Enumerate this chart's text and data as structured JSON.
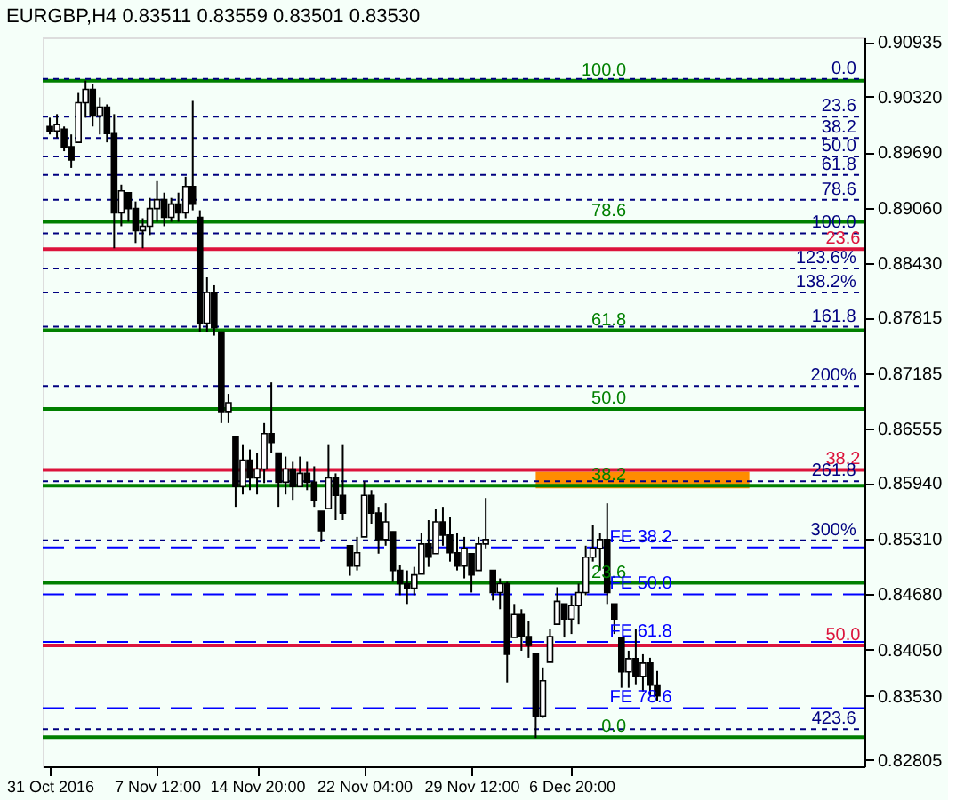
{
  "chart_data": {
    "type": "candlestick",
    "title": "EURGBP,H4 0.83511 0.83559 0.83501 0.83530",
    "color": "#000000",
    "categories": [
      "31 Oct 2016",
      null,
      null,
      null,
      null,
      null,
      null,
      null,
      null,
      null,
      null,
      null,
      null,
      null,
      null,
      "7 Nov 12:00",
      null,
      null,
      null,
      null,
      null,
      null,
      null,
      null,
      null,
      null,
      null,
      null,
      null,
      "14 Nov 20:00",
      null,
      null,
      null,
      null,
      null,
      null,
      null,
      null,
      null,
      null,
      null,
      null,
      null,
      null,
      "22 Nov 04:00",
      null,
      null,
      null,
      null,
      null,
      null,
      null,
      null,
      null,
      null,
      null,
      null,
      null,
      null,
      "29 Nov 12:00",
      null,
      null,
      null,
      null,
      null,
      null,
      null,
      null,
      null,
      null,
      null,
      null,
      null,
      "6 Dec 20:00",
      null,
      null,
      null,
      null,
      null,
      null,
      null,
      null,
      null,
      null,
      null,
      null,
      null,
      null,
      null,
      null,
      null,
      null,
      null,
      null,
      null,
      null,
      null,
      null,
      null,
      null,
      null,
      null,
      null,
      null,
      null,
      null,
      null,
      null,
      null,
      null,
      null,
      null,
      null,
      null
    ],
    "ohlc": [
      [
        0.8998,
        0.9008,
        0.8989,
        0.8993
      ],
      [
        0.8993,
        0.9012,
        0.8985,
        0.9
      ],
      [
        0.8995,
        0.8998,
        0.897,
        0.8975
      ],
      [
        0.8975,
        0.8989,
        0.8951,
        0.896
      ],
      [
        0.898,
        0.9036,
        0.898,
        0.9025
      ],
      [
        0.9025,
        0.905,
        0.9008,
        0.904
      ],
      [
        0.904,
        0.9046,
        0.8998,
        0.901
      ],
      [
        0.901,
        0.9031,
        0.8989,
        0.902
      ],
      [
        0.902,
        0.9023,
        0.898,
        0.899
      ],
      [
        0.899,
        0.9012,
        0.886,
        0.89
      ],
      [
        0.89,
        0.8932,
        0.8885,
        0.8925
      ],
      [
        0.8923,
        0.8923,
        0.889,
        0.8905
      ],
      [
        0.8905,
        0.8913,
        0.8866,
        0.888
      ],
      [
        0.888,
        0.8894,
        0.886,
        0.8885
      ],
      [
        0.8885,
        0.8917,
        0.8875,
        0.8905
      ],
      [
        0.8905,
        0.8936,
        0.889,
        0.8915
      ],
      [
        0.8915,
        0.8923,
        0.8885,
        0.8895
      ],
      [
        0.8895,
        0.8917,
        0.889,
        0.891
      ],
      [
        0.891,
        0.8923,
        0.889,
        0.89
      ],
      [
        0.89,
        0.8941,
        0.8894,
        0.893
      ],
      [
        0.893,
        0.9027,
        0.8903,
        0.891
      ],
      [
        0.8895,
        0.8903,
        0.8765,
        0.8775
      ],
      [
        0.8775,
        0.8827,
        0.8765,
        0.881
      ],
      [
        0.881,
        0.8818,
        0.8761,
        0.877
      ],
      [
        0.8765,
        0.8765,
        0.8662,
        0.8675
      ],
      [
        0.8675,
        0.8695,
        0.8662,
        0.8685
      ],
      [
        0.8647,
        0.8647,
        0.8567,
        0.859
      ],
      [
        0.859,
        0.8638,
        0.8581,
        0.862
      ],
      [
        0.862,
        0.8632,
        0.8586,
        0.86
      ],
      [
        0.86,
        0.8628,
        0.8581,
        0.861
      ],
      [
        0.861,
        0.8662,
        0.8594,
        0.865
      ],
      [
        0.865,
        0.8708,
        0.8628,
        0.864
      ],
      [
        0.8628,
        0.8628,
        0.8567,
        0.8595
      ],
      [
        0.8595,
        0.8624,
        0.8581,
        0.861
      ],
      [
        0.861,
        0.8618,
        0.8575,
        0.859
      ],
      [
        0.859,
        0.8624,
        0.859,
        0.8605
      ],
      [
        0.8605,
        0.8618,
        0.8586,
        0.8595
      ],
      [
        0.8595,
        0.8613,
        0.8567,
        0.8575
      ],
      [
        0.8562,
        0.8562,
        0.8527,
        0.854
      ],
      [
        0.8565,
        0.8638,
        0.8565,
        0.86
      ],
      [
        0.86,
        0.8605,
        0.8552,
        0.858
      ],
      [
        0.858,
        0.8638,
        0.8552,
        0.856
      ],
      [
        0.8523,
        0.8523,
        0.8489,
        0.85
      ],
      [
        0.85,
        0.8533,
        0.8495,
        0.8515
      ],
      [
        0.8533,
        0.8596,
        0.8533,
        0.858
      ],
      [
        0.858,
        0.8586,
        0.8548,
        0.856
      ],
      [
        0.856,
        0.8567,
        0.8514,
        0.853
      ],
      [
        0.853,
        0.8571,
        0.8523,
        0.855
      ],
      [
        0.8539,
        0.8539,
        0.8482,
        0.8495
      ],
      [
        0.8495,
        0.8501,
        0.8467,
        0.848
      ],
      [
        0.848,
        0.8495,
        0.8457,
        0.8475
      ],
      [
        0.8475,
        0.8499,
        0.8467,
        0.849
      ],
      [
        0.8491,
        0.8537,
        0.8491,
        0.8525
      ],
      [
        0.8525,
        0.8552,
        0.8499,
        0.851
      ],
      [
        0.8514,
        0.8565,
        0.8514,
        0.855
      ],
      [
        0.855,
        0.8567,
        0.8523,
        0.8535
      ],
      [
        0.8535,
        0.8556,
        0.8505,
        0.8515
      ],
      [
        0.8515,
        0.8537,
        0.8495,
        0.85
      ],
      [
        0.85,
        0.8533,
        0.8486,
        0.852
      ],
      [
        0.8514,
        0.8514,
        0.847,
        0.849
      ],
      [
        0.8495,
        0.8533,
        0.8495,
        0.8525
      ],
      [
        0.8525,
        0.8577,
        0.852,
        0.853
      ],
      [
        0.8495,
        0.8495,
        0.8461,
        0.847
      ],
      [
        0.847,
        0.8486,
        0.8451,
        0.848
      ],
      [
        0.848,
        0.8482,
        0.8368,
        0.84
      ],
      [
        0.8419,
        0.8457,
        0.8419,
        0.8445
      ],
      [
        0.8445,
        0.8451,
        0.8404,
        0.842
      ],
      [
        0.842,
        0.8438,
        0.8396,
        0.841
      ],
      [
        0.84,
        0.84,
        0.8305,
        0.833
      ],
      [
        0.833,
        0.8385,
        0.8328,
        0.837
      ],
      [
        0.8391,
        0.8429,
        0.8391,
        0.842
      ],
      [
        0.8434,
        0.8476,
        0.8434,
        0.846
      ],
      [
        0.8457,
        0.8457,
        0.8419,
        0.844
      ],
      [
        0.844,
        0.8467,
        0.8423,
        0.8455
      ],
      [
        0.8455,
        0.848,
        0.8434,
        0.847
      ],
      [
        0.847,
        0.8523,
        0.8467,
        0.851
      ],
      [
        0.851,
        0.8546,
        0.8505,
        0.852
      ],
      [
        0.852,
        0.8537,
        0.8495,
        0.853
      ],
      [
        0.853,
        0.8571,
        0.8457,
        0.847
      ],
      [
        0.8457,
        0.8457,
        0.8423,
        0.844
      ],
      [
        0.8419,
        0.8419,
        0.8362,
        0.838
      ],
      [
        0.838,
        0.8404,
        0.8362,
        0.8395
      ],
      [
        0.8395,
        0.8429,
        0.8366,
        0.8375
      ],
      [
        0.8375,
        0.84,
        0.8358,
        0.839
      ],
      [
        0.839,
        0.8396,
        0.8353,
        0.8365
      ],
      [
        0.8365,
        0.8381,
        0.8347,
        0.8353
      ],
      null,
      null,
      null,
      null,
      null,
      null,
      null,
      null,
      null,
      null,
      null,
      null,
      null,
      null,
      null,
      null,
      null,
      null,
      null,
      null,
      null,
      null,
      null,
      null,
      null,
      null,
      null,
      null
    ],
    "ylim": [
      0.8273,
      0.9099
    ],
    "yticks": [
      {
        "value": 0.90935,
        "label": "0.90935"
      },
      {
        "value": 0.9032,
        "label": "0.90320"
      },
      {
        "value": 0.8969,
        "label": "0.89690"
      },
      {
        "value": 0.8906,
        "label": "0.89060"
      },
      {
        "value": 0.8843,
        "label": "0.88430"
      },
      {
        "value": 0.87815,
        "label": "0.87815"
      },
      {
        "value": 0.87185,
        "label": "0.87185"
      },
      {
        "value": 0.86555,
        "label": "0.86555"
      },
      {
        "value": 0.8594,
        "label": "0.85940"
      },
      {
        "value": 0.8531,
        "label": "0.85310"
      },
      {
        "value": 0.8468,
        "label": "0.84680"
      },
      {
        "value": 0.8405,
        "label": "0.84050"
      },
      {
        "value": 0.8353,
        "label": "0.83530"
      },
      {
        "value": 0.82805,
        "label": "0.82805"
      }
    ],
    "ref_lines": [
      {
        "axis": "y",
        "value": 0.905,
        "color": "#008000",
        "line_style": "solid"
      },
      {
        "axis": "y",
        "value": 0.889,
        "color": "#008000",
        "line_style": "solid"
      },
      {
        "axis": "y",
        "value": 0.8767,
        "color": "#008000",
        "line_style": "solid"
      },
      {
        "axis": "y",
        "value": 0.8678,
        "color": "#008000",
        "line_style": "solid"
      },
      {
        "axis": "y",
        "value": 0.8591,
        "color": "#008000",
        "line_style": "solid"
      },
      {
        "axis": "y",
        "value": 0.8481,
        "color": "#008000",
        "line_style": "solid"
      },
      {
        "axis": "y",
        "value": 0.8306,
        "color": "#008000",
        "line_style": "solid"
      },
      {
        "axis": "y",
        "value": 0.8859,
        "color": "#dc143c",
        "line_style": "solid"
      },
      {
        "axis": "y",
        "value": 0.8609,
        "color": "#dc143c",
        "line_style": "solid"
      },
      {
        "axis": "y",
        "value": 0.841,
        "color": "#dc143c",
        "line_style": "solid"
      },
      {
        "axis": "y",
        "value": 0.9052,
        "color": "#000080",
        "line_style": "dotted"
      },
      {
        "axis": "y",
        "value": 0.9009,
        "color": "#000080",
        "line_style": "dotted"
      },
      {
        "axis": "y",
        "value": 0.8985,
        "color": "#000080",
        "line_style": "dotted"
      },
      {
        "axis": "y",
        "value": 0.8964,
        "color": "#000080",
        "line_style": "dotted"
      },
      {
        "axis": "y",
        "value": 0.8943,
        "color": "#000080",
        "line_style": "dotted"
      },
      {
        "axis": "y",
        "value": 0.8915,
        "color": "#000080",
        "line_style": "dotted"
      },
      {
        "axis": "y",
        "value": 0.8877,
        "color": "#000080",
        "line_style": "dotted"
      },
      {
        "axis": "y",
        "value": 0.8837,
        "color": "#000080",
        "line_style": "dotted"
      },
      {
        "axis": "y",
        "value": 0.881,
        "color": "#000080",
        "line_style": "dotted"
      },
      {
        "axis": "y",
        "value": 0.8771,
        "color": "#000080",
        "line_style": "dotted"
      },
      {
        "axis": "y",
        "value": 0.8704,
        "color": "#000080",
        "line_style": "dotted"
      },
      {
        "axis": "y",
        "value": 0.8596,
        "color": "#000080",
        "line_style": "dotted"
      },
      {
        "axis": "y",
        "value": 0.8529,
        "color": "#000080",
        "line_style": "dotted"
      },
      {
        "axis": "y",
        "value": 0.8315,
        "color": "#000080",
        "line_style": "dotted"
      },
      {
        "axis": "y",
        "value": 0.8521,
        "color": "#0000ff",
        "line_style": "dashed"
      },
      {
        "axis": "y",
        "value": 0.8468,
        "color": "#0000ff",
        "line_style": "dashed"
      },
      {
        "axis": "y",
        "value": 0.8414,
        "color": "#0000ff",
        "line_style": "dashed"
      },
      {
        "axis": "y",
        "value": 0.8339,
        "color": "#0000ff",
        "line_style": "dashed"
      }
    ],
    "annotations": [
      {
        "text": "100.0",
        "y": 0.905
      },
      {
        "text": "78.6",
        "y": 0.889
      },
      {
        "text": "61.8",
        "y": 0.8767
      },
      {
        "text": "50.0",
        "y": 0.8678
      },
      {
        "text": "38.2",
        "y": 0.8591
      },
      {
        "text": "23.6",
        "y": 0.8481
      },
      {
        "text": "0.0",
        "y": 0.8306
      },
      {
        "text": "23.6",
        "y": 0.8859
      },
      {
        "text": "38.2",
        "y": 0.8609
      },
      {
        "text": "50.0",
        "y": 0.841
      },
      {
        "text": "0.0",
        "y": 0.9052
      },
      {
        "text": "23.6",
        "y": 0.9009
      },
      {
        "text": "38.2",
        "y": 0.8985
      },
      {
        "text": "50.0",
        "y": 0.8964
      },
      {
        "text": "61.8",
        "y": 0.8943
      },
      {
        "text": "78.6",
        "y": 0.8915
      },
      {
        "text": "100.0",
        "y": 0.8877
      },
      {
        "text": "123.6%",
        "y": 0.8837
      },
      {
        "text": "138.2%",
        "y": 0.881
      },
      {
        "text": "161.8",
        "y": 0.8771
      },
      {
        "text": "200%",
        "y": 0.8704
      },
      {
        "text": "261.8",
        "y": 0.8596
      },
      {
        "text": "300%",
        "y": 0.8529
      },
      {
        "text": "423.6",
        "y": 0.8315
      },
      {
        "text": "FE 38.2",
        "y": 0.8521
      },
      {
        "text": "FE 50.0",
        "y": 0.8468
      },
      {
        "text": "FE 61.8",
        "y": 0.8414
      },
      {
        "text": "FE 78.6",
        "y": 0.8339
      }
    ],
    "bands": [
      {
        "axis": "y",
        "from": 0.8588,
        "to": 0.8607,
        "color": "#ff8c00"
      }
    ],
    "grid": false
  }
}
